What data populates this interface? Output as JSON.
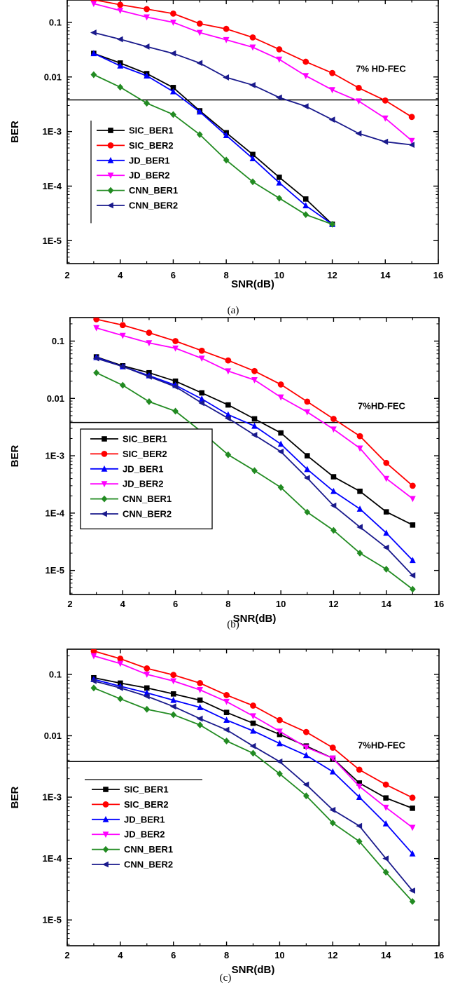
{
  "chart_data": [
    {
      "type": "line",
      "caption": "(a)",
      "xlabel": "SNR(dB)",
      "ylabel": "BER",
      "xlim": [
        2,
        16
      ],
      "x_ticks": [
        2,
        4,
        6,
        8,
        10,
        12,
        14,
        16
      ],
      "y_scale": "log",
      "y_ticks": [
        1e-05,
        0.0001,
        0.001,
        0.01,
        0.1
      ],
      "y_tick_labels": [
        "1E-5",
        "1E-4",
        "1E-3",
        "0.01",
        "0.1"
      ],
      "threshold": {
        "value": 0.0038,
        "label": "7% HD-FEC"
      },
      "legend_position": "lower-left",
      "series": [
        {
          "name": "SIC_BER1",
          "color": "#000000",
          "marker": "square",
          "x": [
            3,
            4,
            5,
            6,
            7,
            8,
            9,
            10,
            11,
            12
          ],
          "y": [
            0.027,
            0.018,
            0.0115,
            0.0064,
            0.0024,
            0.00095,
            0.00038,
            0.000145,
            5.8e-05,
            2e-05
          ]
        },
        {
          "name": "SIC_BER2",
          "color": "#ff0000",
          "marker": "circle",
          "x": [
            3,
            4,
            5,
            6,
            7,
            8,
            9,
            10,
            11,
            12,
            13,
            14,
            15
          ],
          "y": [
            0.26,
            0.21,
            0.175,
            0.145,
            0.095,
            0.076,
            0.053,
            0.032,
            0.019,
            0.0118,
            0.0063,
            0.0037,
            0.00185
          ]
        },
        {
          "name": "JD_BER1",
          "color": "#0000ff",
          "marker": "triangle-up",
          "x": [
            3,
            4,
            5,
            6,
            7,
            8,
            9,
            10,
            11,
            12
          ],
          "y": [
            0.027,
            0.016,
            0.0105,
            0.0054,
            0.0023,
            0.00085,
            0.00032,
            0.000115,
            4.4e-05,
            2e-05
          ]
        },
        {
          "name": "JD_BER2",
          "color": "#ff00ff",
          "marker": "triangle-down",
          "x": [
            3,
            4,
            5,
            6,
            7,
            8,
            9,
            10,
            11,
            12,
            13,
            14,
            15
          ],
          "y": [
            0.22,
            0.165,
            0.125,
            0.1,
            0.065,
            0.048,
            0.035,
            0.021,
            0.0105,
            0.0058,
            0.0036,
            0.00175,
            0.00068
          ]
        },
        {
          "name": "CNN_BER1",
          "color": "#228b22",
          "marker": "diamond",
          "x": [
            3,
            4,
            5,
            6,
            7,
            8,
            9,
            10,
            11,
            12
          ],
          "y": [
            0.011,
            0.0065,
            0.0033,
            0.00205,
            0.00088,
            0.0003,
            0.00012,
            6e-05,
            3e-05,
            2e-05
          ]
        },
        {
          "name": "CNN_BER2",
          "color": "#1a1a8c",
          "marker": "triangle-left",
          "x": [
            3,
            4,
            5,
            6,
            7,
            8,
            9,
            10,
            11,
            12,
            13,
            14,
            15
          ],
          "y": [
            0.065,
            0.049,
            0.036,
            0.027,
            0.018,
            0.0098,
            0.0071,
            0.0042,
            0.0029,
            0.00165,
            0.00092,
            0.00065,
            0.00057
          ]
        }
      ]
    },
    {
      "type": "line",
      "caption": "(b)",
      "xlabel": "SNR(dB)",
      "ylabel": "BER",
      "xlim": [
        2,
        16
      ],
      "x_ticks": [
        2,
        4,
        6,
        8,
        10,
        12,
        14,
        16
      ],
      "y_scale": "log",
      "y_ticks": [
        1e-05,
        0.0001,
        0.001,
        0.01,
        0.1
      ],
      "y_tick_labels": [
        "1E-5",
        "1E-4",
        "1E-3",
        "0.01",
        "0.1"
      ],
      "threshold": {
        "value": 0.0038,
        "label": "7%HD-FEC"
      },
      "legend_position": "lower-left",
      "series": [
        {
          "name": "SIC_BER1",
          "color": "#000000",
          "marker": "square",
          "x": [
            3,
            4,
            5,
            6,
            7,
            8,
            9,
            10,
            11,
            12,
            13,
            14,
            15
          ],
          "y": [
            0.053,
            0.037,
            0.028,
            0.02,
            0.0125,
            0.0077,
            0.0044,
            0.0025,
            0.001,
            0.00043,
            0.00024,
            0.000105,
            6.2e-05
          ]
        },
        {
          "name": "SIC_BER2",
          "color": "#ff0000",
          "marker": "circle",
          "x": [
            3,
            4,
            5,
            6,
            7,
            8,
            9,
            10,
            11,
            12,
            13,
            14,
            15
          ],
          "y": [
            0.24,
            0.19,
            0.14,
            0.1,
            0.068,
            0.046,
            0.03,
            0.0175,
            0.0088,
            0.0044,
            0.0022,
            0.00075,
            0.0003
          ]
        },
        {
          "name": "JD_BER1",
          "color": "#0000ff",
          "marker": "triangle-up",
          "x": [
            3,
            4,
            5,
            6,
            7,
            8,
            9,
            10,
            11,
            12,
            13,
            14,
            15
          ],
          "y": [
            0.052,
            0.036,
            0.025,
            0.017,
            0.0098,
            0.0052,
            0.0033,
            0.0016,
            0.00058,
            0.00024,
            0.000118,
            4.5e-05,
            1.5e-05
          ]
        },
        {
          "name": "JD_BER2",
          "color": "#ff00ff",
          "marker": "triangle-down",
          "x": [
            3,
            4,
            5,
            6,
            7,
            8,
            9,
            10,
            11,
            12,
            13,
            14,
            15
          ],
          "y": [
            0.17,
            0.125,
            0.093,
            0.075,
            0.05,
            0.03,
            0.021,
            0.0105,
            0.0058,
            0.0029,
            0.00135,
            0.0004,
            0.000178
          ]
        },
        {
          "name": "CNN_BER1",
          "color": "#228b22",
          "marker": "diamond",
          "x": [
            3,
            4,
            5,
            6,
            7,
            8,
            9,
            10,
            11,
            12,
            13,
            14,
            15
          ],
          "y": [
            0.028,
            0.017,
            0.0088,
            0.006,
            0.0026,
            0.00104,
            0.00055,
            0.00028,
            0.000104,
            5e-05,
            2e-05,
            1.05e-05,
            4.7e-06
          ]
        },
        {
          "name": "CNN_BER2",
          "color": "#1a1a8c",
          "marker": "triangle-left",
          "x": [
            3,
            4,
            5,
            6,
            7,
            8,
            9,
            10,
            11,
            12,
            13,
            14,
            15
          ],
          "y": [
            0.05,
            0.036,
            0.024,
            0.016,
            0.0083,
            0.0045,
            0.0023,
            0.00118,
            0.00041,
            0.000135,
            5.7e-05,
            2.5e-05,
            8.2e-06
          ]
        }
      ]
    },
    {
      "type": "line",
      "caption": "(c)",
      "xlabel": "SNR(dB)",
      "ylabel": "BER",
      "xlim": [
        2,
        16
      ],
      "x_ticks": [
        2,
        4,
        6,
        8,
        10,
        12,
        14,
        16
      ],
      "y_scale": "log",
      "y_ticks": [
        1e-05,
        0.0001,
        0.001,
        0.01,
        0.1
      ],
      "y_tick_labels": [
        "1E-5",
        "1E-4",
        "1E-3",
        "0.01",
        "0.1"
      ],
      "threshold": {
        "value": 0.0038,
        "label": "7%HD-FEC"
      },
      "legend_position": "lower-left",
      "series": [
        {
          "name": "SIC_BER1",
          "color": "#000000",
          "marker": "square",
          "x": [
            3,
            4,
            5,
            6,
            7,
            8,
            9,
            10,
            11,
            12,
            13,
            14,
            15
          ],
          "y": [
            0.088,
            0.072,
            0.06,
            0.048,
            0.038,
            0.024,
            0.016,
            0.0105,
            0.0068,
            0.0043,
            0.0017,
            0.00097,
            0.00066
          ]
        },
        {
          "name": "SIC_BER2",
          "color": "#ff0000",
          "marker": "circle",
          "x": [
            3,
            4,
            5,
            6,
            7,
            8,
            9,
            10,
            11,
            12,
            13,
            14,
            15
          ],
          "y": [
            0.24,
            0.18,
            0.125,
            0.098,
            0.072,
            0.046,
            0.031,
            0.018,
            0.0115,
            0.0064,
            0.0028,
            0.0016,
            0.00098
          ]
        },
        {
          "name": "JD_BER1",
          "color": "#0000ff",
          "marker": "triangle-up",
          "x": [
            3,
            4,
            5,
            6,
            7,
            8,
            9,
            10,
            11,
            12,
            13,
            14,
            15
          ],
          "y": [
            0.083,
            0.064,
            0.05,
            0.038,
            0.029,
            0.018,
            0.012,
            0.0075,
            0.0048,
            0.0026,
            0.001,
            0.00037,
            0.00012
          ]
        },
        {
          "name": "JD_BER2",
          "color": "#ff00ff",
          "marker": "triangle-down",
          "x": [
            3,
            4,
            5,
            6,
            7,
            8,
            9,
            10,
            11,
            12,
            13,
            14,
            15
          ],
          "y": [
            0.2,
            0.15,
            0.1,
            0.078,
            0.056,
            0.036,
            0.021,
            0.0118,
            0.0065,
            0.0043,
            0.0015,
            0.00068,
            0.00032
          ]
        },
        {
          "name": "CNN_BER1",
          "color": "#228b22",
          "marker": "diamond",
          "x": [
            3,
            4,
            5,
            6,
            7,
            8,
            9,
            10,
            11,
            12,
            13,
            14,
            15
          ],
          "y": [
            0.06,
            0.04,
            0.027,
            0.022,
            0.015,
            0.0082,
            0.0052,
            0.0024,
            0.00105,
            0.00038,
            0.00019,
            6e-05,
            2e-05
          ]
        },
        {
          "name": "CNN_BER2",
          "color": "#1a1a8c",
          "marker": "triangle-left",
          "x": [
            3,
            4,
            5,
            6,
            7,
            8,
            9,
            10,
            11,
            12,
            13,
            14,
            15
          ],
          "y": [
            0.078,
            0.06,
            0.044,
            0.03,
            0.019,
            0.0125,
            0.0068,
            0.0038,
            0.0016,
            0.00062,
            0.00034,
            0.0001,
            3e-05
          ]
        }
      ]
    }
  ]
}
